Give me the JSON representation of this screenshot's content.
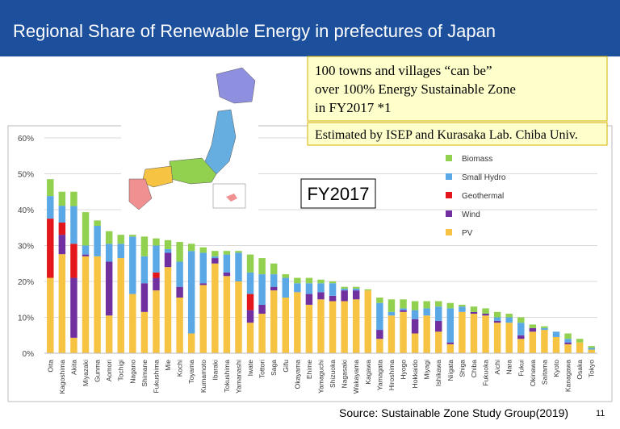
{
  "chart_data": {
    "type": "stacked_bar",
    "title": "Regional Share of Renewable Energy in prefectures of Japan",
    "annotations": [
      "100 towns and villages “can be”",
      "over 100% Energy Sustainable Zone",
      "in FY2017 *1",
      "Estimated by ISEP and Kurasaka Lab. Chiba Univ.",
      "FY2017"
    ],
    "source": "Source: Sustainable Zone Study Group(2019)",
    "page_number": "11",
    "categories": [
      "Oita",
      "Kagoshima",
      "Akita",
      "Miyazaki",
      "Gunma",
      "Aomori",
      "Tochigi",
      "Nagano",
      "Shimane",
      "Fukushima",
      "Mie",
      "Kochi",
      "Toyama",
      "Kumamoto",
      "Ibaraki",
      "Tokushima",
      "Yamanashi",
      "Iwate",
      "Tottori",
      "Saga",
      "Gifu",
      "Okayama",
      "Ehime",
      "Yamaguchi",
      "Shizuoka",
      "Nagasaki",
      "Wakayama",
      "Kagawa",
      "Yamagata",
      "Hiroshima",
      "Hyogo",
      "Hokkaido",
      "Miyagi",
      "Ishikawa",
      "Niigata",
      "Shiga",
      "Chiba",
      "Fukuoka",
      "Aichi",
      "Nara",
      "Fukui",
      "Okinawa",
      "Saitama",
      "Kyoto",
      "Kanagawa",
      "Osaka",
      "Tokyo"
    ],
    "series": [
      {
        "name": "Biomass",
        "color": "#92d050",
        "values": [
          4.7,
          3.9,
          4,
          9.3,
          1.5,
          3.5,
          2.5,
          0.5,
          5.5,
          2,
          2.5,
          5.5,
          2,
          1.5,
          1.5,
          1,
          0.5,
          5,
          4.5,
          3,
          1,
          1.5,
          1.5,
          1,
          0.5,
          0.5,
          0.5,
          0.3,
          1.5,
          3.5,
          2.5,
          2.5,
          2,
          1.5,
          1.5,
          0.5,
          1.5,
          1.5,
          1.5,
          1,
          1.5,
          1,
          0.5,
          0,
          1.5,
          1,
          0.5
        ]
      },
      {
        "name": "Small Hydro",
        "color": "#5aa9e6",
        "values": [
          6.3,
          4.7,
          10.5,
          2.5,
          8.5,
          5,
          4,
          16,
          7.5,
          7.5,
          1,
          7,
          23,
          8.5,
          0.5,
          5,
          8,
          6,
          8.5,
          3.5,
          5.5,
          2.5,
          3,
          2.5,
          3.5,
          0.5,
          0.5,
          0,
          7.5,
          1,
          0.5,
          2.5,
          2,
          4,
          9.5,
          1.5,
          0,
          0,
          1,
          1.5,
          3.5,
          0,
          0.5,
          1.5,
          1,
          0,
          0.5
        ]
      },
      {
        "name": "Geothermal",
        "color": "#e3161b",
        "values": [
          16.5,
          3.4,
          9.5,
          0,
          0,
          0,
          0,
          0,
          0,
          1.5,
          0,
          0,
          0,
          0,
          0,
          0,
          0,
          4.5,
          0,
          0,
          0,
          0,
          0,
          0,
          0,
          0,
          0,
          0,
          0,
          0,
          0,
          0,
          0,
          0,
          0,
          0,
          0,
          0,
          0,
          0,
          0,
          0,
          0,
          0,
          0,
          0,
          0
        ]
      },
      {
        "name": "Wind",
        "color": "#7030a0",
        "values": [
          0,
          5.4,
          16.7,
          0.5,
          0,
          15,
          0,
          0,
          8,
          3.5,
          4,
          3,
          0,
          0.5,
          1.5,
          1,
          0,
          3.5,
          2.5,
          1,
          0,
          0,
          3,
          2,
          1.5,
          3,
          2.5,
          0,
          2.5,
          0,
          0.5,
          4,
          0,
          3,
          0.5,
          0,
          0.5,
          0.5,
          0.5,
          0,
          1,
          1,
          0,
          0,
          0.5,
          0,
          0
        ]
      },
      {
        "name": "PV",
        "color": "#f6c343",
        "values": [
          21,
          27.6,
          4.3,
          27,
          27,
          10.5,
          26.5,
          16.5,
          11.5,
          17.5,
          24,
          15.5,
          5.5,
          19,
          25,
          21.5,
          20,
          8.5,
          11,
          17.5,
          15.5,
          17,
          13.5,
          15,
          14.5,
          14.5,
          15,
          17.5,
          4,
          10.5,
          11.5,
          5.5,
          10.5,
          6,
          2.5,
          11.5,
          11,
          10.5,
          8.5,
          8.5,
          4,
          6,
          6.5,
          4.5,
          2.5,
          3,
          1
        ]
      }
    ],
    "ylim": [
      0,
      60
    ],
    "yticks": [
      {
        "value": 0,
        "label": "0%"
      },
      {
        "value": 10,
        "label": "10%"
      },
      {
        "value": 20,
        "label": "20%"
      },
      {
        "value": 30,
        "label": "30%"
      },
      {
        "value": 40,
        "label": "40%"
      },
      {
        "value": 50,
        "label": "50%"
      },
      {
        "value": 60,
        "label": "60%"
      }
    ],
    "grid": true,
    "legend": "right"
  }
}
